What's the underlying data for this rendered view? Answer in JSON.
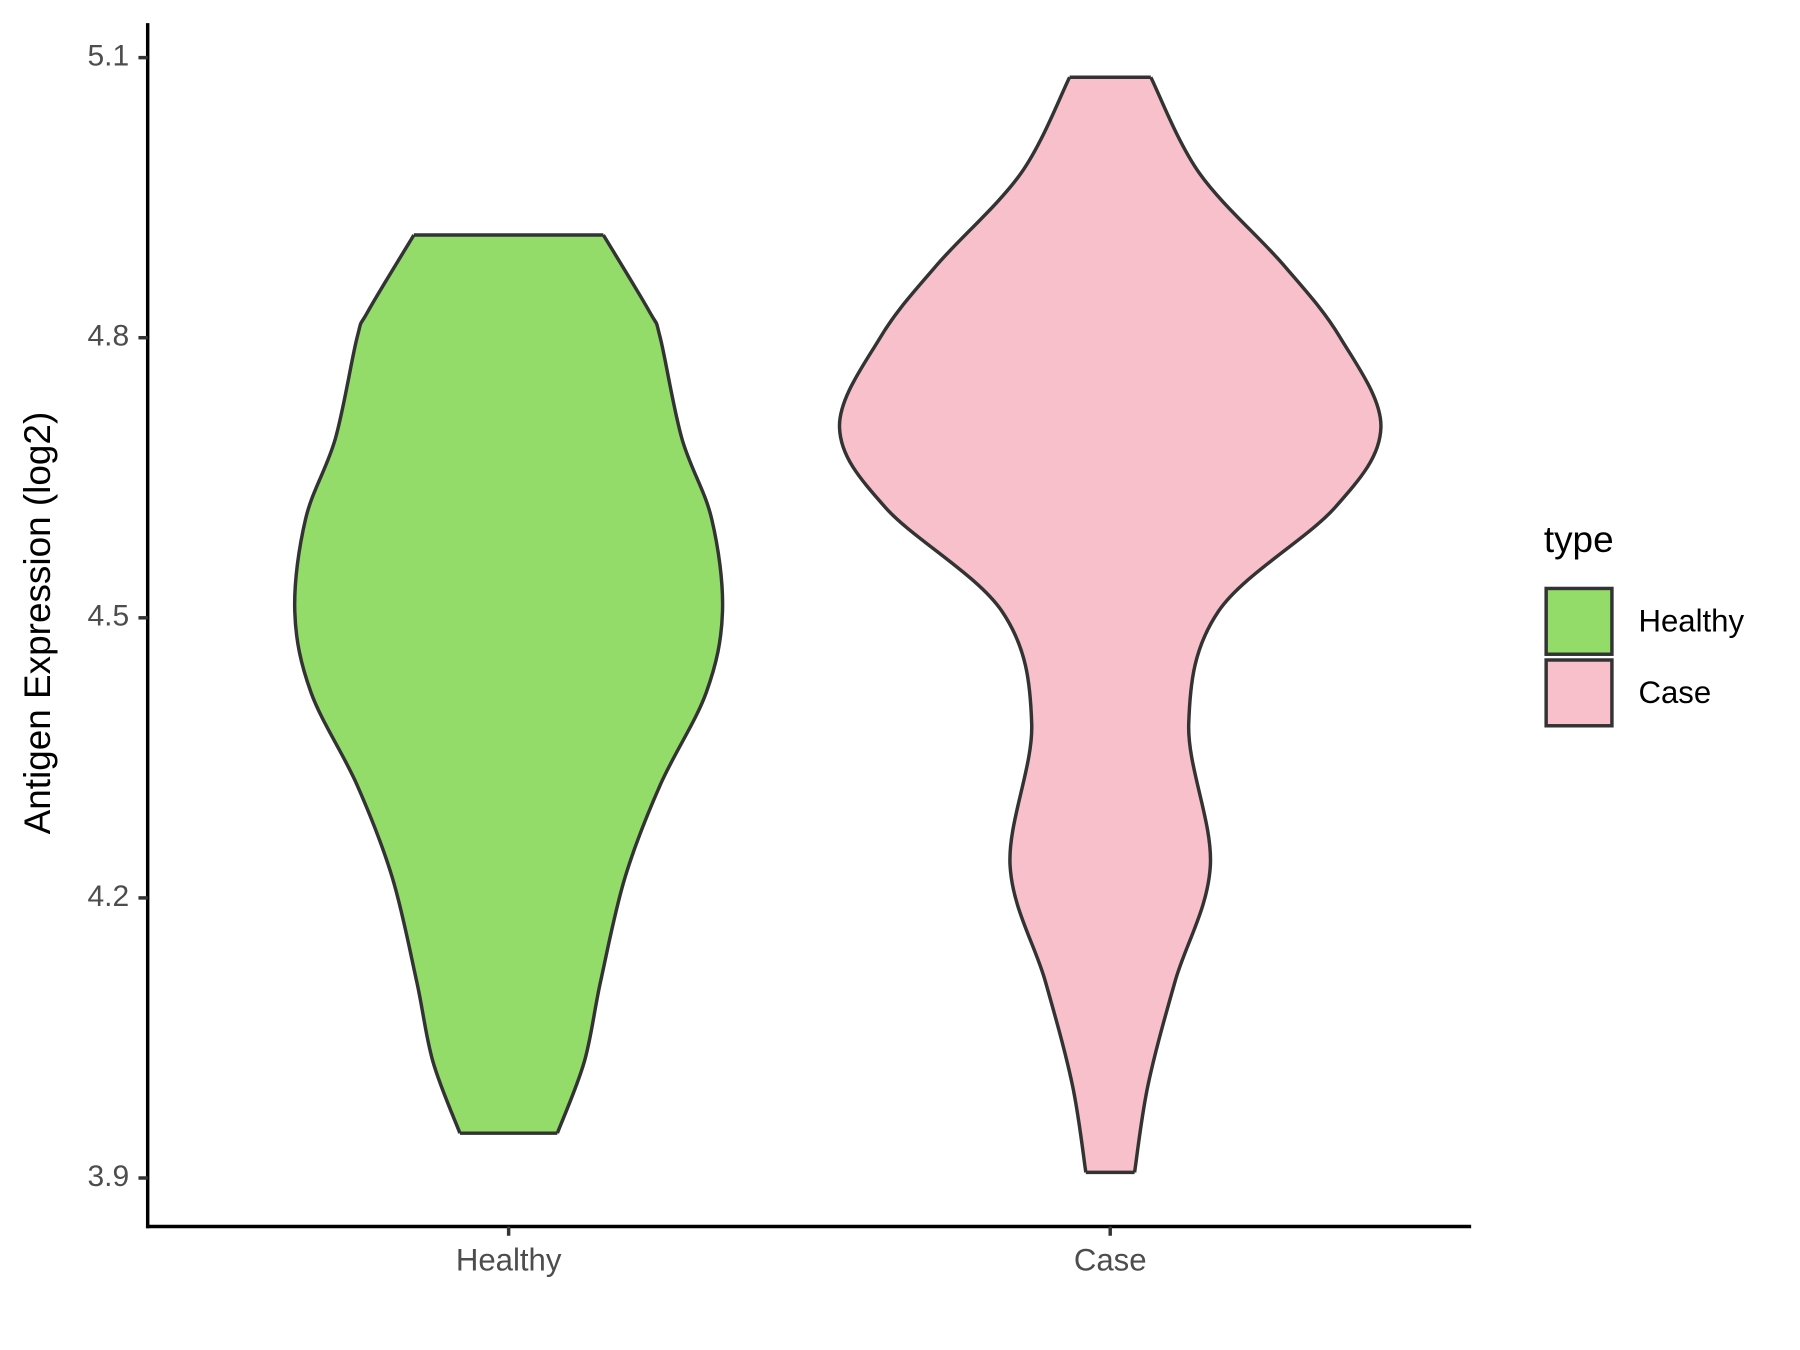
{
  "chart_data": {
    "type": "violin",
    "y_label": "Antigen Expression (log2)",
    "categories": [
      "Healthy",
      "Case"
    ],
    "legend_title": "type",
    "legend": "right",
    "ylim": [
      3.848,
      5.137
    ],
    "yticks": [
      3.9,
      4.2,
      4.5,
      4.8,
      5.1
    ],
    "series": [
      {
        "name": "Healthy",
        "color": "#93dc6a",
        "y": [
          4.91,
          4.828,
          4.8,
          4.692,
          4.606,
          4.507,
          4.42,
          4.321,
          4.222,
          4.111,
          4.025,
          3.948
        ],
        "width": [
          0.35,
          0.52,
          0.56,
          0.64,
          0.75,
          0.79,
          0.73,
          0.56,
          0.43,
          0.34,
          0.28,
          0.18
        ]
      },
      {
        "name": "Case",
        "color": "#f7c0cb",
        "y": [
          5.079,
          4.976,
          4.878,
          4.8,
          4.704,
          4.618,
          4.507,
          4.386,
          4.235,
          4.111,
          4.0,
          3.906
        ],
        "width": [
          0.15,
          0.33,
          0.64,
          0.85,
          1.0,
          0.83,
          0.4,
          0.29,
          0.37,
          0.24,
          0.14,
          0.09
        ]
      }
    ]
  }
}
